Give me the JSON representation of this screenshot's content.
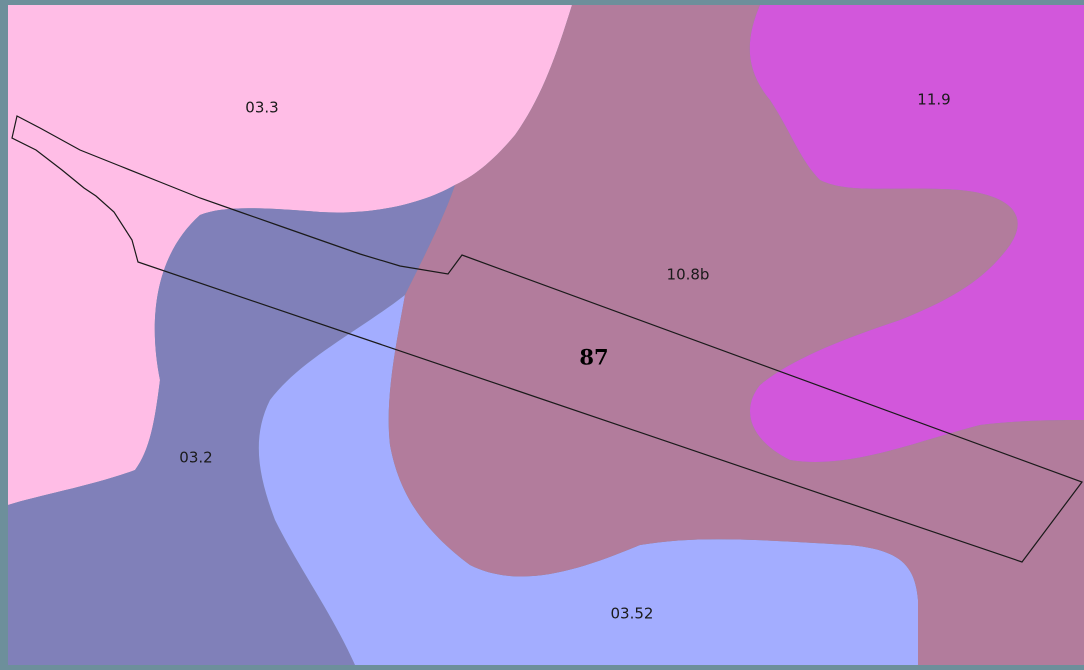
{
  "map": {
    "zones": [
      {
        "id": "zone-03-3",
        "label": "03.3",
        "color": "#ffbde6"
      },
      {
        "id": "zone-03-2",
        "label": "03.2",
        "color": "#8080b9"
      },
      {
        "id": "zone-03-52",
        "label": "03.52",
        "color": "#a3adff"
      },
      {
        "id": "zone-10-8b",
        "label": "10.8b",
        "color": "#b27c9c"
      },
      {
        "id": "zone-11-9",
        "label": "11.9",
        "color": "#d257db"
      }
    ],
    "parcel": {
      "label": "87",
      "outline_color": "#1a1a1a"
    }
  }
}
